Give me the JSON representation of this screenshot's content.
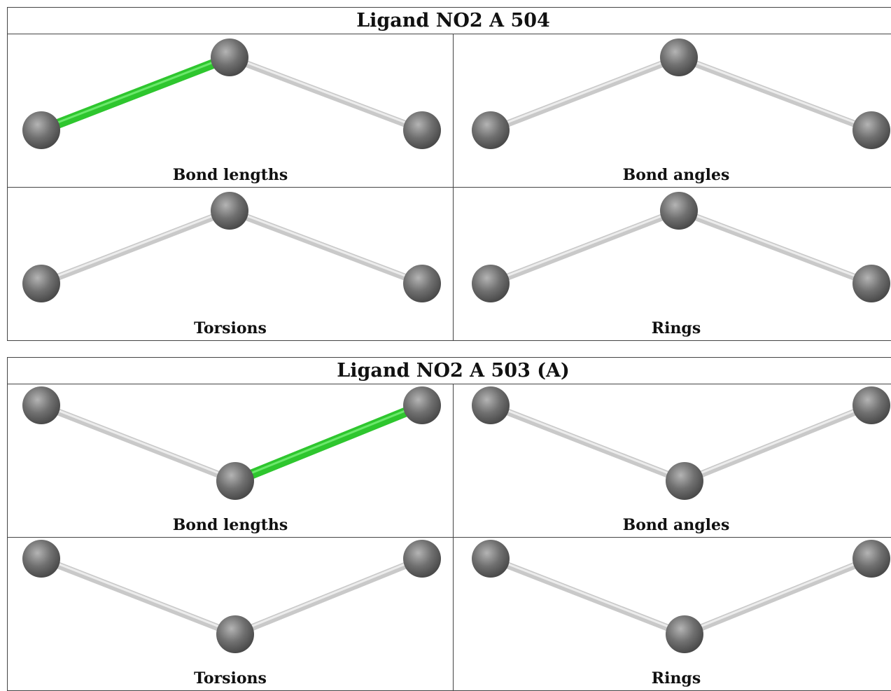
{
  "colors": {
    "bond": "#c9c9c9",
    "highlight_bond": "#2ec62e",
    "atom": "#707070",
    "border": "#444444"
  },
  "ligands": [
    {
      "title": "Ligand NO2 A 504",
      "panels": [
        {
          "caption": "Bond lengths",
          "highlight": [
            0,
            1
          ]
        },
        {
          "caption": "Bond angles",
          "highlight": null
        },
        {
          "caption": "Torsions",
          "highlight": null
        },
        {
          "caption": "Rings",
          "highlight": null
        }
      ]
    },
    {
      "title": "Ligand NO2 A 503 (A)",
      "panels": [
        {
          "caption": "Bond lengths",
          "highlight": [
            1,
            2
          ]
        },
        {
          "caption": "Bond angles",
          "highlight": null
        },
        {
          "caption": "Torsions",
          "highlight": null
        },
        {
          "caption": "Rings",
          "highlight": null
        }
      ]
    }
  ]
}
